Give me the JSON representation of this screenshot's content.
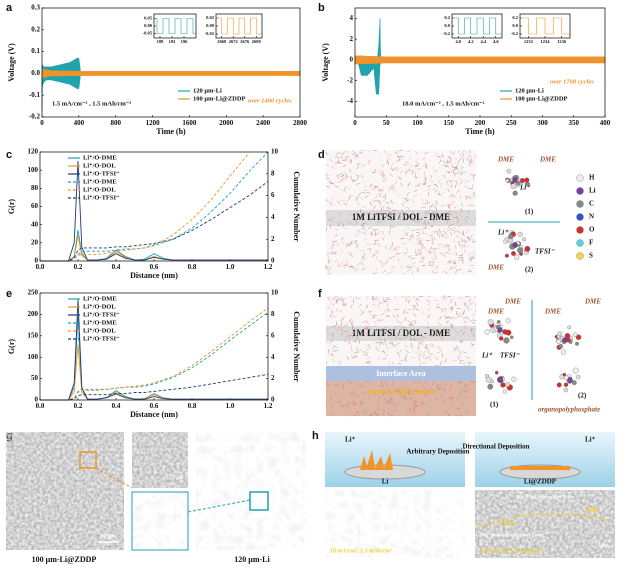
{
  "panel_labels": [
    "a",
    "b",
    "c",
    "d",
    "e",
    "f",
    "g",
    "h"
  ],
  "chart_data": [
    {
      "type": "band",
      "xlabel": "Time (h)",
      "ylabel": "Voltage (V)",
      "xlim": [
        0,
        2800
      ],
      "xticks": [
        0,
        400,
        800,
        1200,
        1600,
        2000,
        2400,
        2800
      ],
      "ylim": [
        -0.2,
        0.3
      ],
      "yticks": [
        -0.2,
        -0.1,
        {
          "value": 0,
          "label": "0.0"
        },
        0.1,
        0.2,
        0.3
      ],
      "legend": "lower right",
      "annotations": [
        {
          "text": "over 1400 cycles"
        },
        {
          "text": "1.5 mA/cm⁻² , 1.5 mAh/cm⁻²"
        }
      ],
      "series": [
        {
          "name": "120 μm-Li",
          "color": "#1fa3ad",
          "x": [
            0,
            5,
            20,
            50,
            100,
            200,
            300,
            380,
            400,
            410,
            420
          ],
          "values": [
            0.02,
            0.04,
            0.03,
            0.03,
            0.03,
            0.04,
            0.05,
            0.07,
            0.07,
            0.04,
            0
          ],
          "lower": [
            -0.17,
            -0.06,
            -0.04,
            -0.03,
            -0.03,
            -0.04,
            -0.05,
            -0.07,
            -0.07,
            -0.04,
            0
          ]
        },
        {
          "name": "100 μm-Li@ZDDP",
          "color": "#f0932b",
          "x": [
            0,
            100,
            500,
            1000,
            1500,
            2000,
            2500,
            2800
          ],
          "values": [
            0.02,
            0.012,
            0.01,
            0.01,
            0.01,
            0.01,
            0.01,
            0.01
          ],
          "lower": [
            -0.02,
            -0.012,
            -0.01,
            -0.01,
            -0.01,
            -0.01,
            -0.01,
            -0.01
          ]
        }
      ]
    },
    {
      "type": "line",
      "xlim": [
        186,
        200
      ],
      "xticks": [
        188,
        192,
        196
      ],
      "ylim": [
        -0.08,
        0.08
      ],
      "yticks": [
        -0.05,
        {
          "value": 0,
          "label": "0.00"
        },
        0.05
      ],
      "series": [
        {
          "color": "#1fa3ad",
          "x": [
            186,
            187,
            187,
            189,
            189,
            191,
            191,
            193,
            193,
            195,
            195,
            197,
            197,
            199,
            199,
            200
          ],
          "values": [
            0.05,
            0.05,
            -0.05,
            -0.05,
            0.05,
            0.05,
            -0.05,
            -0.05,
            0.05,
            0.05,
            -0.05,
            -0.05,
            0.05,
            0.05,
            -0.05,
            -0.05
          ]
        }
      ]
    },
    {
      "type": "line",
      "xlim": [
        2666,
        2682
      ],
      "xticks": [
        2668,
        2672,
        2676,
        2680
      ],
      "ylim": [
        -0.03,
        0.03
      ],
      "yticks": [
        -0.02,
        {
          "value": 0,
          "label": "0.00"
        },
        0.02
      ],
      "series": [
        {
          "color": "#f0932b",
          "x": [
            2666,
            2668,
            2668,
            2670,
            2670,
            2672,
            2672,
            2674,
            2674,
            2676,
            2676,
            2678,
            2678,
            2680,
            2680,
            2682
          ],
          "values": [
            0.02,
            0.02,
            -0.02,
            -0.02,
            0.02,
            0.02,
            -0.02,
            -0.02,
            0.02,
            0.02,
            -0.02,
            -0.02,
            0.02,
            0.02,
            -0.02,
            -0.02
          ]
        }
      ]
    },
    {
      "type": "band",
      "xlabel": "Time (h)",
      "ylabel": "Voltage (V)",
      "xlim": [
        0,
        400
      ],
      "xticks": [
        0,
        50,
        100,
        150,
        200,
        250,
        300,
        350,
        400
      ],
      "ylim": [
        -5.5,
        5
      ],
      "yticks": [
        -4,
        -2,
        0,
        2,
        4
      ],
      "legend": "lower right",
      "annotations": [
        {
          "text": "over 1700 cycles"
        },
        {
          "text": "18.0 mA/cm⁻² , 1.5 mAh/cm⁻²"
        }
      ],
      "series": [
        {
          "name": "120 μm-Li",
          "color": "#1fa3ad",
          "x": [
            0,
            5,
            10,
            20,
            30,
            34,
            36,
            38,
            40,
            41,
            42,
            44,
            46
          ],
          "values": [
            0.3,
            0.2,
            0.4,
            0.3,
            0.2,
            0.3,
            0.2,
            1.5,
            4,
            0.3,
            0.2,
            0.2,
            0
          ],
          "lower": [
            -0.3,
            -0.3,
            -1.5,
            -1.5,
            -0.8,
            -3.3,
            -3.3,
            -3.3,
            -0.5,
            -0.3,
            -0.2,
            -0.2,
            0
          ]
        },
        {
          "name": "100 μm-Li@ZDDP",
          "color": "#f0932b",
          "x": [
            0,
            50,
            100,
            200,
            300,
            400
          ],
          "values": [
            0.4,
            0.3,
            0.3,
            0.3,
            0.3,
            0.3
          ],
          "lower": [
            -0.4,
            -0.3,
            -0.3,
            -0.3,
            -0.3,
            -0.3
          ]
        }
      ]
    },
    {
      "type": "line",
      "xlim": [
        3.9,
        4.7
      ],
      "xticks": [
        {
          "value": 4,
          "label": "4.0"
        },
        4.2,
        4.4,
        4.6
      ],
      "ylim": [
        -0.3,
        0.3
      ],
      "yticks": [
        -0.2,
        {
          "value": 0,
          "label": "0.0"
        },
        0.2
      ],
      "series": [
        {
          "color": "#1fa3ad",
          "x": [
            3.9,
            4,
            4,
            4.1,
            4.1,
            4.2,
            4.2,
            4.3,
            4.3,
            4.4,
            4.4,
            4.5,
            4.5,
            4.6,
            4.6,
            4.7
          ],
          "values": [
            0.2,
            0.2,
            -0.2,
            -0.2,
            0.2,
            0.2,
            -0.2,
            -0.2,
            0.2,
            0.2,
            -0.2,
            -0.2,
            0.2,
            0.2,
            -0.2,
            -0.2
          ]
        }
      ]
    },
    {
      "type": "line",
      "xlim": [
        1231,
        1237
      ],
      "xticks": [
        1232,
        1234,
        1236
      ],
      "ylim": [
        -0.3,
        0.3
      ],
      "yticks": [
        -0.2,
        {
          "value": 0,
          "label": "0.0"
        },
        0.2
      ],
      "series": [
        {
          "color": "#f0932b",
          "x": [
            1231,
            1232,
            1232,
            1233,
            1233,
            1234,
            1234,
            1235,
            1235,
            1236,
            1236,
            1237
          ],
          "values": [
            0.2,
            0.2,
            -0.2,
            -0.2,
            0.2,
            0.2,
            -0.2,
            -0.2,
            0.2,
            0.2,
            -0.2,
            -0.2
          ]
        }
      ]
    },
    {
      "type": "line",
      "xlabel": "Distance (nm)",
      "ylabel": "G(r)",
      "y2label": "Cumulative Number",
      "xlim": [
        0,
        1.2
      ],
      "xticks": [
        {
          "value": 0,
          "label": "0.0"
        },
        0.2,
        0.4,
        0.6,
        0.8,
        {
          "value": 1,
          "label": "1.0"
        },
        1.2
      ],
      "ylim": [
        0,
        120
      ],
      "yticks": [
        0,
        20,
        40,
        60,
        80,
        100,
        120
      ],
      "y2lim": [
        0,
        10
      ],
      "y2ticks": [
        0,
        2,
        4,
        6,
        8,
        10
      ],
      "legend": "upper left",
      "x": [
        0,
        0.1,
        0.15,
        0.18,
        0.2,
        0.22,
        0.25,
        0.3,
        0.35,
        0.4,
        0.45,
        0.5,
        0.55,
        0.6,
        0.65,
        0.7,
        0.8,
        0.9,
        1.0,
        1.1,
        1.2
      ],
      "series": [
        {
          "name": "Li⁺/O-DME",
          "color": "#1fa3ad",
          "values": [
            0,
            0,
            0,
            5,
            34,
            8,
            1,
            1,
            3,
            12,
            5,
            1,
            2,
            8,
            3,
            1,
            1,
            1,
            1,
            1,
            1
          ]
        },
        {
          "name": "Li⁺/O-DOL",
          "color": "#f0932b",
          "values": [
            0,
            0,
            0,
            4,
            28,
            6,
            1,
            1,
            2,
            10,
            4,
            1,
            1,
            5,
            2,
            1,
            1,
            1,
            1,
            1,
            1
          ]
        },
        {
          "name": "Li⁺/O-TFSI⁻",
          "color": "#1f3b73",
          "values": [
            0,
            0,
            0,
            20,
            110,
            15,
            1,
            1,
            2,
            8,
            3,
            1,
            1,
            4,
            2,
            1,
            1,
            1,
            1,
            1,
            1
          ]
        },
        {
          "name": "Li⁺/O-DME",
          "color": "#1fa3ad",
          "dash": true,
          "axis": "y2",
          "values": [
            0,
            0,
            0,
            0.2,
            0.6,
            0.8,
            0.9,
            0.9,
            0.9,
            1.0,
            1.1,
            1.1,
            1.2,
            1.4,
            1.7,
            2.0,
            3.0,
            4.5,
            6.2,
            8.2,
            10
          ]
        },
        {
          "name": "Li⁺/O-DOL",
          "color": "#f0932b",
          "dash": true,
          "axis": "y2",
          "values": [
            0,
            0,
            0,
            0.2,
            0.5,
            0.6,
            0.6,
            0.6,
            0.7,
            0.9,
            1.0,
            1.1,
            1.2,
            1.5,
            1.9,
            2.4,
            3.8,
            5.6,
            7.8,
            9.9,
            null
          ]
        },
        {
          "name": "Li⁺/O-TFSI⁻",
          "color": "#1f3b73",
          "dash": true,
          "axis": "y2",
          "values": [
            0,
            0,
            0,
            0.3,
            1.0,
            1.2,
            1.2,
            1.2,
            1.2,
            1.3,
            1.3,
            1.4,
            1.5,
            1.6,
            1.8,
            2.0,
            2.8,
            3.8,
            4.9,
            6.0,
            7.3
          ]
        }
      ]
    },
    {
      "type": "line",
      "xlabel": "Distance (nm)",
      "ylabel": "G(r)",
      "y2label": "Cumulative Number",
      "xlim": [
        0,
        1.2
      ],
      "xticks": [
        {
          "value": 0,
          "label": "0.0"
        },
        0.2,
        0.4,
        0.6,
        0.8,
        {
          "value": 1,
          "label": "1.0"
        },
        1.2
      ],
      "ylim": [
        0,
        250
      ],
      "yticks": [
        0,
        50,
        100,
        150,
        200,
        250
      ],
      "y2lim": [
        0,
        10
      ],
      "y2ticks": [
        0,
        2,
        4,
        6,
        8,
        10
      ],
      "legend": "upper left",
      "x": [
        0,
        0.1,
        0.15,
        0.18,
        0.2,
        0.22,
        0.25,
        0.3,
        0.35,
        0.4,
        0.45,
        0.5,
        0.55,
        0.6,
        0.65,
        0.7,
        0.8,
        0.9,
        1.0,
        1.1,
        1.2
      ],
      "series": [
        {
          "name": "Li⁺/O-DME",
          "color": "#1fa3ad",
          "values": [
            0,
            0,
            0,
            30,
            195,
            25,
            2,
            2,
            6,
            22,
            8,
            2,
            3,
            15,
            5,
            2,
            2,
            2,
            2,
            2,
            2
          ]
        },
        {
          "name": "Li⁺/O-DOL",
          "color": "#f0932b",
          "values": [
            0,
            0,
            0,
            20,
            130,
            18,
            2,
            2,
            5,
            18,
            6,
            2,
            3,
            12,
            4,
            2,
            2,
            2,
            2,
            2,
            2
          ]
        },
        {
          "name": "Li⁺/O-TFSI⁻",
          "color": "#1f3b73",
          "values": [
            0,
            0,
            0,
            40,
            235,
            30,
            2,
            2,
            5,
            14,
            5,
            2,
            2,
            8,
            3,
            2,
            2,
            2,
            2,
            2,
            2
          ]
        },
        {
          "name": "Li⁺/O-DME",
          "color": "#1fa3ad",
          "dash": true,
          "axis": "y2",
          "values": [
            0,
            0,
            0,
            0.2,
            0.8,
            1.0,
            1.0,
            1.0,
            1.0,
            1.1,
            1.2,
            1.2,
            1.3,
            1.5,
            1.8,
            2.1,
            3.0,
            4.2,
            5.6,
            6.9,
            8.2
          ]
        },
        {
          "name": "Li⁺/O-DOL",
          "color": "#f0932b",
          "dash": true,
          "axis": "y2",
          "values": [
            0,
            0,
            0,
            0.2,
            0.7,
            0.9,
            0.9,
            0.9,
            1.0,
            1.1,
            1.2,
            1.3,
            1.4,
            1.6,
            1.9,
            2.2,
            3.2,
            4.5,
            5.9,
            7.3,
            8.6
          ]
        },
        {
          "name": "Li⁺/O-TFSI⁻",
          "color": "#1f3b73",
          "dash": true,
          "axis": "y2",
          "values": [
            0,
            0,
            0,
            0.1,
            0.4,
            0.5,
            0.5,
            0.5,
            0.5,
            0.6,
            0.6,
            0.7,
            0.7,
            0.8,
            0.9,
            1.0,
            1.2,
            1.5,
            1.8,
            2.1,
            2.4
          ]
        }
      ]
    }
  ],
  "panel_d": {
    "box_label": "1M LiTFSI / DOL - DME",
    "labels": [
      "DME",
      "DME",
      "Li⁺",
      "(1)",
      "(2)",
      "TFSI⁻",
      "DME",
      "Li⁺"
    ],
    "atoms": [
      "H",
      "Li",
      "C",
      "N",
      "O",
      "F",
      "S"
    ]
  },
  "panel_f": {
    "box_label": "1M LiTFSI / DOL - DME",
    "interface": "Interface Area",
    "layer": "organopolyphosphate",
    "labels": [
      "DME",
      "DME",
      "Li⁺",
      "TFSI⁻",
      "(1)",
      "(2)",
      "DME",
      "DME",
      "organopolyphosphate"
    ]
  },
  "panel_g": {
    "left": "100 μm-Li@ZDDP",
    "right": "120 μm-Li",
    "scales": [
      "10 μm",
      "2 μm",
      "2 μm",
      "10 μm"
    ]
  },
  "panel_h": {
    "left_top": [
      "Li⁺",
      "Arbitrary Deposition",
      "Li"
    ],
    "right_top": [
      "Directional Deposition",
      "Li⁺",
      "Li@ZDDP"
    ],
    "left_bottom": [
      "Dendrite",
      "18 mA/cm², 1.5 mAh/cm²",
      "2 μm"
    ],
    "right_bottom": [
      "The Fast Deposition Zone",
      "Center",
      "Edge",
      "The Dense Deposition Zone",
      "18 mA/cm², 1.5 mAh/cm²",
      "2 μm"
    ]
  }
}
